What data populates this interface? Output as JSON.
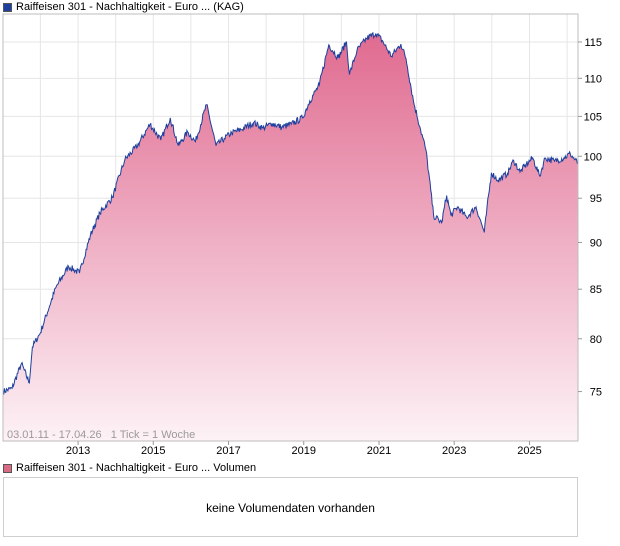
{
  "legend": {
    "price_label": "Raiffeisen 301 - Nachhaltigkeit - Euro ... (KAG)",
    "price_color": "#1d3f9e",
    "volume_label": "Raiffeisen 301 - Nachhaltigkeit - Euro ... Volumen",
    "volume_color": "#d96b84"
  },
  "footer_note": "03.01.11 - 17.04.26   1 Tick = 1 Woche",
  "volume_panel": {
    "message": "keine Volumendaten vorhanden"
  },
  "chart_data": {
    "type": "area",
    "title": "",
    "xlabel": "",
    "ylabel": "",
    "x_ticks": [
      "2013",
      "2015",
      "2017",
      "2019",
      "2021",
      "2023",
      "2025"
    ],
    "y_ticks": [
      75,
      80,
      85,
      90,
      95,
      100,
      105,
      110,
      115
    ],
    "xlim": [
      "2011-01-03",
      "2026-04-17"
    ],
    "ylim_scale": "log",
    "ylim": [
      70.6,
      119
    ],
    "grid": true,
    "line_color": "#1d3f9e",
    "fill_color_top": "#e06a90",
    "fill_color_bottom": "#fdf2f6",
    "series": [
      {
        "x": [
          "2011-01-03",
          "2011-04-01",
          "2011-07-01",
          "2011-09-15",
          "2011-10-15",
          "2012-01-01",
          "2012-06-01",
          "2012-10-01",
          "2013-01-15",
          "2013-05-01",
          "2013-08-01",
          "2013-12-01",
          "2014-04-01",
          "2014-08-01",
          "2014-12-01",
          "2015-03-15",
          "2015-06-15",
          "2015-09-01",
          "2015-12-01",
          "2016-02-15",
          "2016-06-01",
          "2016-09-01",
          "2016-11-20",
          "2017-02-01",
          "2017-05-01",
          "2017-09-01",
          "2017-12-01",
          "2018-03-01",
          "2018-06-01",
          "2018-09-01",
          "2018-12-20",
          "2019-03-01",
          "2019-06-01",
          "2019-09-01",
          "2019-12-01",
          "2020-02-20",
          "2020-03-20",
          "2020-06-01",
          "2020-09-01",
          "2020-12-01",
          "2021-02-01",
          "2021-05-01",
          "2021-08-01",
          "2021-09-20",
          "2021-12-01",
          "2022-02-01",
          "2022-04-01",
          "2022-06-15",
          "2022-09-01",
          "2022-10-20",
          "2022-12-01",
          "2023-02-01",
          "2023-05-01",
          "2023-08-01",
          "2023-10-20",
          "2023-12-28",
          "2024-03-01",
          "2024-06-01",
          "2024-08-01",
          "2024-10-01",
          "2024-12-01",
          "2025-02-01",
          "2025-04-10",
          "2025-06-01",
          "2025-09-01",
          "2025-12-01",
          "2026-02-01",
          "2026-04-17"
        ],
        "values": [
          75.0,
          75.3,
          77.6,
          75.8,
          79.2,
          80.6,
          85.2,
          87.4,
          86.7,
          90.8,
          93.3,
          95.1,
          99.6,
          101.3,
          104.0,
          102.0,
          104.8,
          101.3,
          103.0,
          101.8,
          106.5,
          101.3,
          102.2,
          102.9,
          103.3,
          104.2,
          103.5,
          104.1,
          103.6,
          104.0,
          104.8,
          107.0,
          109.1,
          114.6,
          112.8,
          115.0,
          110.5,
          113.8,
          115.5,
          116.2,
          115.2,
          113.0,
          114.7,
          112.7,
          107.0,
          103.7,
          100.8,
          93.0,
          92.2,
          95.3,
          93.0,
          94.0,
          92.8,
          94.0,
          91.1,
          98.0,
          97.1,
          97.9,
          99.5,
          98.1,
          99.0,
          99.8,
          97.6,
          99.8,
          99.4,
          99.8,
          100.3,
          99.1
        ]
      }
    ]
  }
}
